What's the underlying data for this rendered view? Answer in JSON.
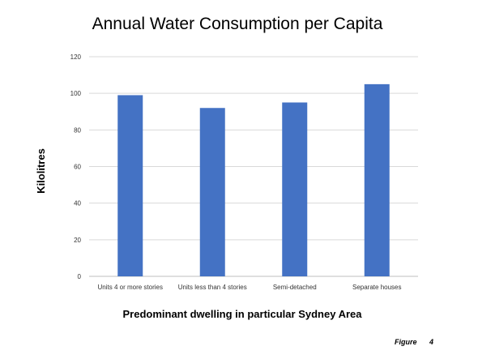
{
  "chart_data": {
    "type": "bar",
    "title": "Annual Water Consumption per Capita",
    "xlabel": "Predominant dwelling in particular Sydney Area",
    "ylabel": "Kilolitres",
    "categories": [
      "Units 4 or more stories",
      "Units less than 4 stories",
      "Semi-detached",
      "Separate houses"
    ],
    "values": [
      99,
      92,
      95,
      105
    ],
    "ylim": [
      0,
      120
    ],
    "yticks": [
      "0",
      "20",
      "40",
      "60",
      "80",
      "100",
      "120"
    ],
    "bar_color": "#4472c4",
    "grid": true,
    "legend": "none"
  },
  "figure": {
    "label": "Figure",
    "number": "4"
  }
}
